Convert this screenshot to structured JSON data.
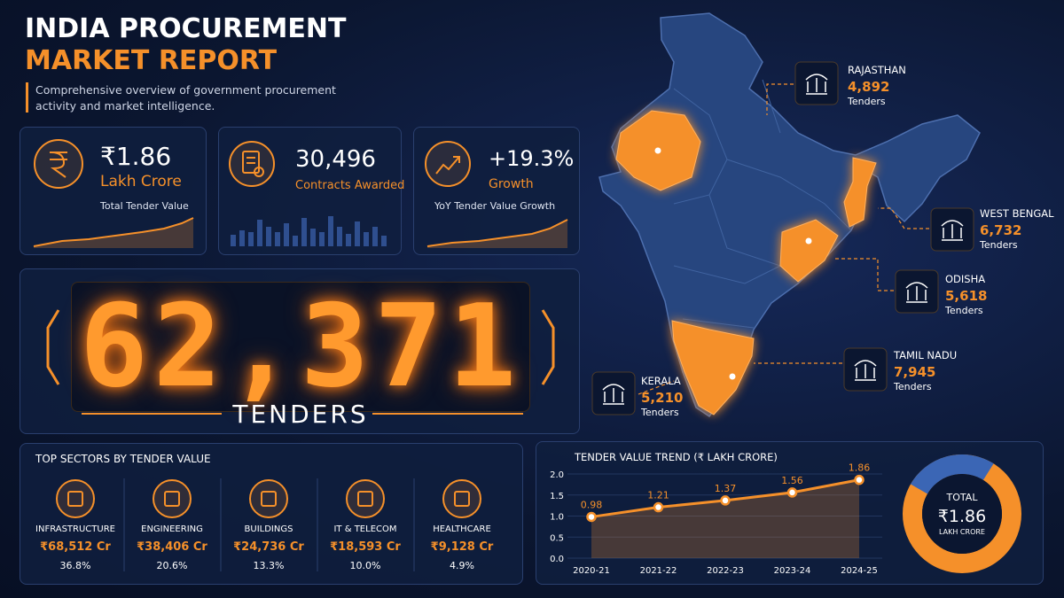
{
  "header": {
    "title_line1": "INDIA PROCUREMENT",
    "title_line2": "MARKET REPORT",
    "subtitle": "Comprehensive overview of government procurement activity and market intelligence."
  },
  "kpis": [
    {
      "value": "₹1.86",
      "label": "Lakh Crore",
      "caption": "Total Tender Value"
    },
    {
      "value": "30,496",
      "label": "Contracts Awarded"
    },
    {
      "value": "+19.3%",
      "label": "Growth",
      "caption": "YoY Tender Value Growth"
    }
  ],
  "counter": {
    "value": "62,371",
    "label": "TENDERS"
  },
  "states": [
    {
      "name": "RAJASTHAN",
      "value": "4,892",
      "unit": "Tenders"
    },
    {
      "name": "WEST BENGAL",
      "value": "6,732",
      "unit": "Tenders"
    },
    {
      "name": "ODISHA",
      "value": "5,618",
      "unit": "Tenders"
    },
    {
      "name": "TAMIL NADU",
      "value": "7,945",
      "unit": "Tenders"
    },
    {
      "name": "KERALA",
      "value": "5,210",
      "unit": "Tenders"
    }
  ],
  "sectors": {
    "title": "TOP SECTORS BY TENDER VALUE",
    "items": [
      {
        "name": "INFRASTRUCTURE",
        "value": "₹68,512 Cr",
        "share": "36.8%"
      },
      {
        "name": "ENGINEERING",
        "value": "₹38,406 Cr",
        "share": "20.6%"
      },
      {
        "name": "BUILDINGS",
        "value": "₹24,736 Cr",
        "share": "13.3%"
      },
      {
        "name": "IT & TELECOM",
        "value": "₹18,593 Cr",
        "share": "10.0%"
      },
      {
        "name": "HEALTHCARE",
        "value": "₹9,128 Cr",
        "share": "4.9%"
      }
    ]
  },
  "chart_data": {
    "type": "line",
    "title": "TENDER VALUE TREND (₹ LAKH CRORE)",
    "categories": [
      "2020-21",
      "2021-22",
      "2022-23",
      "2023-24",
      "2024-25"
    ],
    "values": [
      0.98,
      1.21,
      1.37,
      1.56,
      1.86
    ],
    "color": "#f5902a",
    "area": true,
    "ylim": [
      0,
      2
    ],
    "yticks": [
      {
        "value": 0,
        "label": "0.0"
      },
      {
        "value": 0.5,
        "label": "0.5"
      },
      {
        "value": 1,
        "label": "1.0"
      },
      {
        "value": 1.5,
        "label": "1.5"
      },
      {
        "value": 2,
        "label": "2.0"
      }
    ]
  },
  "donut": {
    "label": "TOTAL",
    "value": "₹1.86",
    "unit": "LAKH CRORE"
  }
}
